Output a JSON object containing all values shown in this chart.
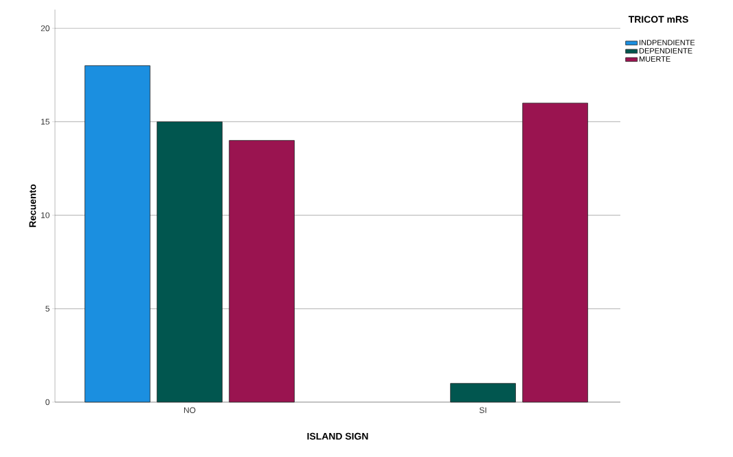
{
  "chart_data": {
    "type": "bar",
    "xlabel": "ISLAND SIGN",
    "ylabel": "Recuento",
    "legend_title": "TRICOT mRS",
    "categories": [
      "NO",
      "SI"
    ],
    "series": [
      {
        "name": "INDPENDIENTE",
        "color": "#1b8fe0",
        "values": [
          18,
          null
        ]
      },
      {
        "name": "DEPENDIENTE",
        "color": "#01564f",
        "values": [
          15,
          1
        ]
      },
      {
        "name": "MUERTE",
        "color": "#9a1450",
        "values": [
          14,
          16
        ]
      }
    ],
    "ylim": [
      0,
      21
    ],
    "yticks": [
      0,
      5,
      10,
      15,
      20
    ],
    "grid": "y",
    "legend": "top right"
  }
}
